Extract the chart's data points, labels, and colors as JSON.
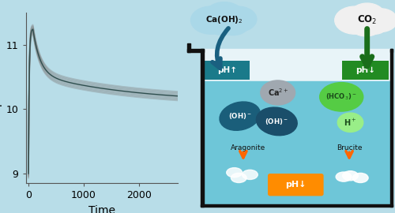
{
  "background_color": "#b8dde8",
  "axes_bg_color": "#b8dde8",
  "ylabel": "pH",
  "xlabel": "Time",
  "yticks": [
    9,
    10,
    11
  ],
  "xticks": [
    0,
    1000,
    2000
  ],
  "ylim": [
    8.85,
    11.5
  ],
  "xlim": [
    -50,
    2700
  ],
  "peak_x": 80,
  "peak_y": 11.25,
  "start_y": 9.0,
  "end_y": 10.1,
  "line_color": "#2f4f4f",
  "band_color": "#808080",
  "band_alpha": 0.35,
  "label_fontsize": 10,
  "tick_fontsize": 9,
  "beaker_water_color": "#6ec6d8",
  "beaker_top_color": "#e8f4f8",
  "beaker_border_color": "#111111",
  "ph_up_color": "#1a7a8a",
  "ph_dn_green_color": "#228B22",
  "ca_color": "#a0a8b0",
  "oh_color1": "#1a5e7a",
  "oh_color2": "#1a4e6a",
  "hco3_color": "#55cc44",
  "hp_color": "#99ee88",
  "arrow_teal": "#1a6080",
  "arrow_green": "#1a6e1a",
  "orange_arrow": "#ff6600",
  "orange_box": "#ff8c00",
  "co2_cloud_color": "#f0f0f0",
  "caoh_cloud_color": "#aad8e8"
}
